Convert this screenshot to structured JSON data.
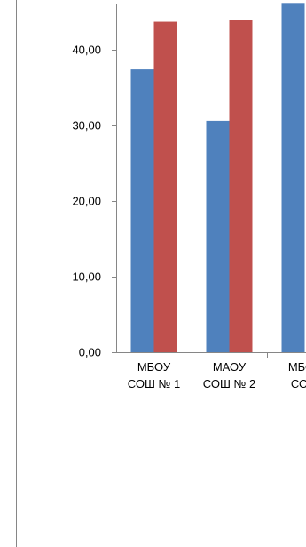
{
  "chart_data": {
    "type": "bar",
    "categories": [
      [
        "МБОУ",
        "СОШ № 1"
      ],
      [
        "МАОУ",
        "СОШ № 2"
      ],
      [
        "МБОУ",
        "СОШ"
      ]
    ],
    "series": [
      {
        "color": "#4F81BD",
        "values": [
          37.4,
          30.6,
          46.2
        ]
      },
      {
        "color": "#C0504D",
        "values": [
          43.7,
          44.0,
          null
        ]
      }
    ],
    "y_ticks": [
      "0,00",
      "10,00",
      "20,00",
      "30,00",
      "40,00"
    ],
    "ylim": [
      0,
      46
    ],
    "axis_color": "#868686",
    "grid": false,
    "legend": "none"
  }
}
